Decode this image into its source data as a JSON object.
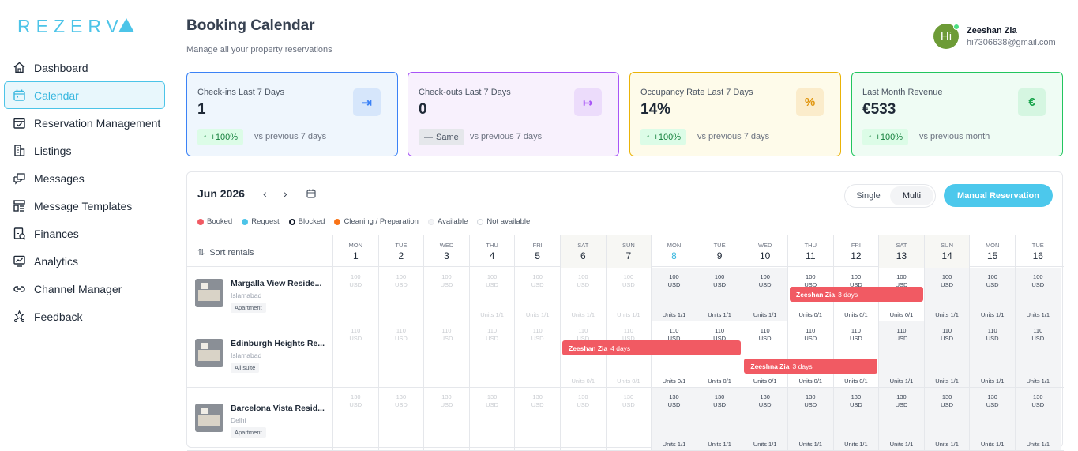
{
  "brand": {
    "name": "REZERV",
    "accent": "#4cc4e8"
  },
  "sidebar": {
    "items": [
      {
        "label": "Dashboard",
        "icon": "home-icon",
        "active": false
      },
      {
        "label": "Calendar",
        "icon": "calendar-icon",
        "active": true
      },
      {
        "label": "Reservation Management",
        "icon": "reservation-icon",
        "active": false
      },
      {
        "label": "Listings",
        "icon": "building-icon",
        "active": false
      },
      {
        "label": "Messages",
        "icon": "chat-icon",
        "active": false
      },
      {
        "label": "Message Templates",
        "icon": "template-icon",
        "active": false
      },
      {
        "label": "Finances",
        "icon": "finance-icon",
        "active": false
      },
      {
        "label": "Analytics",
        "icon": "analytics-icon",
        "active": false
      },
      {
        "label": "Channel Manager",
        "icon": "link-icon",
        "active": false
      },
      {
        "label": "Feedback",
        "icon": "feedback-icon",
        "active": false
      }
    ]
  },
  "header": {
    "title": "Booking Calendar",
    "subtitle": "Manage all your property reservations"
  },
  "user": {
    "initials": "Hi",
    "name": "Zeeshan Zia",
    "email": "hi7306638@gmail.com"
  },
  "stats": [
    {
      "label": "Check-ins Last 7 Days",
      "value": "1",
      "badge": "+100%",
      "badge_arrow": "↑",
      "compare": "vs previous 7 days",
      "icon": "login-icon",
      "glyph": "⇥"
    },
    {
      "label": "Check-outs Last 7 Days",
      "value": "0",
      "badge": "Same",
      "badge_arrow": "—",
      "compare": "vs previous 7 days",
      "icon": "logout-icon",
      "glyph": "↦"
    },
    {
      "label": "Occupancy Rate Last 7 Days",
      "value": "14%",
      "badge": "+100%",
      "badge_arrow": "↑",
      "compare": "vs previous 7 days",
      "icon": "percent-icon",
      "glyph": "%"
    },
    {
      "label": "Last Month Revenue",
      "value": "€533",
      "badge": "+100%",
      "badge_arrow": "↑",
      "compare": "vs previous month",
      "icon": "euro-icon",
      "glyph": "€"
    }
  ],
  "calendar": {
    "month": "Jun 2026",
    "prev": "‹",
    "next": "›",
    "view": {
      "single": "Single",
      "multi": "Multi",
      "selected": "Multi"
    },
    "manual_button": "Manual Reservation",
    "legend": [
      {
        "label": "Booked",
        "color": "#f15a63"
      },
      {
        "label": "Request",
        "color": "#4cc4e8"
      },
      {
        "label": "Blocked",
        "color": "#111827"
      },
      {
        "label": "Cleaning / Preparation",
        "color": "#f97316"
      },
      {
        "label": "Available",
        "color": "#f3f4f6"
      },
      {
        "label": "Not available",
        "color": "#ffffff"
      }
    ],
    "sort_label": "Sort rentals",
    "days": [
      {
        "dow": "MON",
        "num": "1"
      },
      {
        "dow": "TUE",
        "num": "2"
      },
      {
        "dow": "WED",
        "num": "3"
      },
      {
        "dow": "THU",
        "num": "4"
      },
      {
        "dow": "FRI",
        "num": "5"
      },
      {
        "dow": "SAT",
        "num": "6"
      },
      {
        "dow": "SUN",
        "num": "7"
      },
      {
        "dow": "MON",
        "num": "8"
      },
      {
        "dow": "TUE",
        "num": "9"
      },
      {
        "dow": "WED",
        "num": "10"
      },
      {
        "dow": "THU",
        "num": "11"
      },
      {
        "dow": "FRI",
        "num": "12"
      },
      {
        "dow": "SAT",
        "num": "13"
      },
      {
        "dow": "SUN",
        "num": "14"
      },
      {
        "dow": "MON",
        "num": "15"
      },
      {
        "dow": "TUE",
        "num": "16"
      }
    ],
    "today_index": 7,
    "currency": "USD",
    "rentals": [
      {
        "name": "Margalla View Reside...",
        "city": "Islamabad",
        "type": "Apartment",
        "price": "100",
        "units": [
          "",
          "",
          "",
          "Units 1/1",
          "Units 1/1",
          "Units 1/1",
          "Units 1/1",
          "Units 1/1",
          "Units 1/1",
          "Units 1/1",
          "Units 0/1",
          "Units 0/1",
          "Units 0/1",
          "Units 1/1",
          "Units 1/1",
          "Units 1/1"
        ],
        "bookings": [
          {
            "guest": "Zeeshan Zia",
            "days": "3 days",
            "start": 10,
            "length": 3
          }
        ]
      },
      {
        "name": "Edinburgh Heights Re...",
        "city": "Islamabad",
        "type": "All suite",
        "price": "110",
        "units": [
          "",
          "",
          "",
          "",
          "",
          "Units 0/1",
          "Units 0/1",
          "Units 0/1",
          "Units 0/1",
          "Units 0/1",
          "Units 0/1",
          "Units 0/1",
          "Units 1/1",
          "Units 1/1",
          "Units 1/1",
          "Units 1/1"
        ],
        "bookings": [
          {
            "guest": "Zeeshan Zia",
            "days": "4 days",
            "start": 5,
            "length": 4,
            "lane": 0
          },
          {
            "guest": "Zeeshna Zia",
            "days": "3 days",
            "start": 9,
            "length": 3,
            "lane": 1
          }
        ]
      },
      {
        "name": "Barcelona Vista Resid...",
        "city": "Delhi",
        "type": "Apartment",
        "price": "130",
        "units": [
          "",
          "",
          "",
          "",
          "",
          "",
          "",
          "Units 1/1",
          "Units 1/1",
          "Units 1/1",
          "Units 1/1",
          "Units 1/1",
          "Units 1/1",
          "Units 1/1",
          "Units 1/1",
          "Units 1/1"
        ],
        "bookings": []
      }
    ]
  }
}
